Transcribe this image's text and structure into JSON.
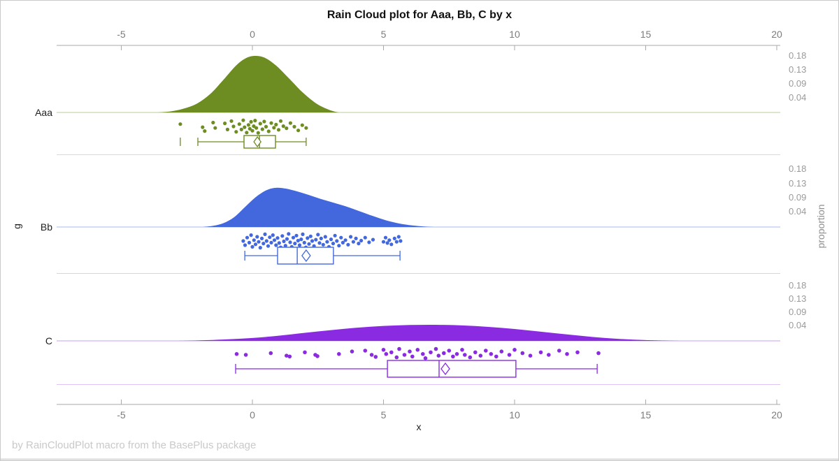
{
  "title": "Rain Cloud plot for Aaa, Bb, C by x",
  "footer": "by RainCloudPlot macro from the BasePlus package",
  "axes": {
    "x_label": "x",
    "y_label": "g",
    "y2_label": "proportion"
  },
  "chart_data": {
    "type": "raincloud (half-violin density + jittered points + box plot)",
    "title": "Rain Cloud plot for Aaa, Bb, C by x",
    "xlabel": "x",
    "ylabel": "g",
    "y2label": "proportion",
    "x_ticks": [
      -5,
      0,
      5,
      10,
      15,
      20
    ],
    "x_range": [
      -7.5,
      20.2
    ],
    "categories": [
      "Aaa",
      "Bb",
      "C"
    ],
    "proportion_ticks": [
      "0.18",
      "0.13",
      "0.09",
      "0.04"
    ],
    "grid": false,
    "legend": "none",
    "groups": [
      {
        "name": "Aaa",
        "color": "#6d8c21",
        "density": [
          [
            -3.6,
            0
          ],
          [
            -3.1,
            0.02
          ],
          [
            -2.6,
            0.07
          ],
          [
            -2.1,
            0.16
          ],
          [
            -1.6,
            0.33
          ],
          [
            -1.1,
            0.58
          ],
          [
            -0.6,
            0.84
          ],
          [
            -0.2,
            0.97
          ],
          [
            0.15,
            1.0
          ],
          [
            0.5,
            0.96
          ],
          [
            0.9,
            0.83
          ],
          [
            1.4,
            0.6
          ],
          [
            1.9,
            0.36
          ],
          [
            2.4,
            0.17
          ],
          [
            2.8,
            0.07
          ],
          [
            3.1,
            0.02
          ],
          [
            3.3,
            0
          ]
        ],
        "box": {
          "whisker_low": -2.08,
          "q1": -0.32,
          "median": 0.27,
          "q3": 0.88,
          "whisker_high": 2.05,
          "mean": 0.19,
          "outliers": [
            -2.75
          ]
        },
        "points": [
          [
            -2.75,
            0.35
          ],
          [
            -1.9,
            0.55
          ],
          [
            -1.82,
            0.8
          ],
          [
            -1.5,
            0.25
          ],
          [
            -1.42,
            0.6
          ],
          [
            -1.05,
            0.3
          ],
          [
            -0.95,
            0.7
          ],
          [
            -0.8,
            0.15
          ],
          [
            -0.72,
            0.5
          ],
          [
            -0.62,
            0.85
          ],
          [
            -0.5,
            0.35
          ],
          [
            -0.42,
            0.7
          ],
          [
            -0.35,
            0.1
          ],
          [
            -0.3,
            0.55
          ],
          [
            -0.22,
            0.9
          ],
          [
            -0.15,
            0.4
          ],
          [
            -0.1,
            0.65
          ],
          [
            -0.05,
            0.2
          ],
          [
            0.0,
            0.78
          ],
          [
            0.05,
            0.48
          ],
          [
            0.1,
            0.12
          ],
          [
            0.15,
            0.6
          ],
          [
            0.22,
            0.92
          ],
          [
            0.3,
            0.32
          ],
          [
            0.38,
            0.68
          ],
          [
            0.45,
            0.18
          ],
          [
            0.52,
            0.52
          ],
          [
            0.62,
            0.82
          ],
          [
            0.72,
            0.28
          ],
          [
            0.82,
            0.58
          ],
          [
            0.9,
            0.38
          ],
          [
            1.0,
            0.72
          ],
          [
            1.08,
            0.15
          ],
          [
            1.18,
            0.48
          ],
          [
            1.3,
            0.62
          ],
          [
            1.45,
            0.28
          ],
          [
            1.6,
            0.52
          ],
          [
            1.75,
            0.76
          ],
          [
            1.9,
            0.42
          ],
          [
            2.05,
            0.6
          ]
        ]
      },
      {
        "name": "Bb",
        "color": "#4368de",
        "density": [
          [
            -1.9,
            0
          ],
          [
            -1.5,
            0.03
          ],
          [
            -1.1,
            0.1
          ],
          [
            -0.7,
            0.25
          ],
          [
            -0.3,
            0.5
          ],
          [
            0.1,
            0.75
          ],
          [
            0.5,
            0.93
          ],
          [
            0.85,
            1.0
          ],
          [
            1.2,
            0.99
          ],
          [
            1.6,
            0.93
          ],
          [
            2.1,
            0.83
          ],
          [
            2.6,
            0.72
          ],
          [
            3.1,
            0.62
          ],
          [
            3.6,
            0.52
          ],
          [
            4.1,
            0.4
          ],
          [
            4.6,
            0.28
          ],
          [
            5.1,
            0.17
          ],
          [
            5.6,
            0.09
          ],
          [
            6.1,
            0.04
          ],
          [
            6.6,
            0.01
          ],
          [
            6.95,
            0
          ]
        ],
        "box": {
          "whisker_low": -0.29,
          "q1": 0.96,
          "median": 1.71,
          "q3": 3.09,
          "whisker_high": 5.63,
          "mean": 2.05,
          "outliers": []
        },
        "points": [
          [
            -0.35,
            0.5
          ],
          [
            -0.28,
            0.75
          ],
          [
            -0.2,
            0.3
          ],
          [
            -0.12,
            0.6
          ],
          [
            -0.05,
            0.15
          ],
          [
            0.0,
            0.85
          ],
          [
            0.06,
            0.45
          ],
          [
            0.12,
            0.7
          ],
          [
            0.18,
            0.25
          ],
          [
            0.24,
            0.55
          ],
          [
            0.3,
            0.9
          ],
          [
            0.36,
            0.35
          ],
          [
            0.42,
            0.65
          ],
          [
            0.48,
            0.1
          ],
          [
            0.54,
            0.5
          ],
          [
            0.6,
            0.8
          ],
          [
            0.66,
            0.28
          ],
          [
            0.72,
            0.6
          ],
          [
            0.78,
            0.15
          ],
          [
            0.84,
            0.45
          ],
          [
            0.9,
            0.75
          ],
          [
            0.96,
            0.32
          ],
          [
            1.02,
            0.62
          ],
          [
            1.08,
            0.88
          ],
          [
            1.14,
            0.2
          ],
          [
            1.2,
            0.52
          ],
          [
            1.26,
            0.78
          ],
          [
            1.32,
            0.38
          ],
          [
            1.38,
            0.08
          ],
          [
            1.44,
            0.58
          ],
          [
            1.5,
            0.85
          ],
          [
            1.56,
            0.3
          ],
          [
            1.62,
            0.65
          ],
          [
            1.68,
            0.18
          ],
          [
            1.74,
            0.48
          ],
          [
            1.8,
            0.75
          ],
          [
            1.86,
            0.4
          ],
          [
            1.92,
            0.1
          ],
          [
            1.98,
            0.6
          ],
          [
            2.04,
            0.88
          ],
          [
            2.1,
            0.33
          ],
          [
            2.16,
            0.68
          ],
          [
            2.22,
            0.22
          ],
          [
            2.28,
            0.5
          ],
          [
            2.35,
            0.8
          ],
          [
            2.42,
            0.42
          ],
          [
            2.5,
            0.12
          ],
          [
            2.56,
            0.62
          ],
          [
            2.62,
            0.35
          ],
          [
            2.7,
            0.72
          ],
          [
            2.78,
            0.25
          ],
          [
            2.85,
            0.55
          ],
          [
            2.92,
            0.85
          ],
          [
            3.0,
            0.4
          ],
          [
            3.08,
            0.65
          ],
          [
            3.15,
            0.18
          ],
          [
            3.22,
            0.5
          ],
          [
            3.3,
            0.78
          ],
          [
            3.38,
            0.3
          ],
          [
            3.45,
            0.6
          ],
          [
            3.55,
            0.45
          ],
          [
            3.65,
            0.72
          ],
          [
            3.75,
            0.25
          ],
          [
            3.85,
            0.55
          ],
          [
            3.95,
            0.35
          ],
          [
            4.05,
            0.65
          ],
          [
            4.15,
            0.48
          ],
          [
            4.3,
            0.3
          ],
          [
            4.45,
            0.58
          ],
          [
            4.6,
            0.42
          ],
          [
            5.0,
            0.55
          ],
          [
            5.08,
            0.3
          ],
          [
            5.15,
            0.62
          ],
          [
            5.22,
            0.45
          ],
          [
            5.3,
            0.7
          ],
          [
            5.42,
            0.35
          ],
          [
            5.5,
            0.55
          ],
          [
            5.58,
            0.25
          ],
          [
            5.65,
            0.5
          ]
        ]
      },
      {
        "name": "C",
        "color": "#8a2be2",
        "density": [
          [
            -2.8,
            0
          ],
          [
            -2.0,
            0.03
          ],
          [
            -1.0,
            0.09
          ],
          [
            0.0,
            0.18
          ],
          [
            1.0,
            0.32
          ],
          [
            2.0,
            0.5
          ],
          [
            3.0,
            0.67
          ],
          [
            4.0,
            0.82
          ],
          [
            5.0,
            0.93
          ],
          [
            6.0,
            0.99
          ],
          [
            7.0,
            1.0
          ],
          [
            8.0,
            0.96
          ],
          [
            9.0,
            0.87
          ],
          [
            10.0,
            0.74
          ],
          [
            11.0,
            0.57
          ],
          [
            12.0,
            0.4
          ],
          [
            13.0,
            0.24
          ],
          [
            14.0,
            0.12
          ],
          [
            15.0,
            0.05
          ],
          [
            16.0,
            0.01
          ],
          [
            16.3,
            0
          ]
        ],
        "box": {
          "whisker_low": -0.64,
          "q1": 5.15,
          "median": 7.12,
          "q3": 10.05,
          "whisker_high": 13.15,
          "mean": 7.36,
          "outliers": []
        },
        "points": [
          [
            -0.6,
            0.45
          ],
          [
            -0.25,
            0.5
          ],
          [
            0.7,
            0.4
          ],
          [
            1.3,
            0.55
          ],
          [
            1.42,
            0.6
          ],
          [
            2.0,
            0.35
          ],
          [
            2.4,
            0.5
          ],
          [
            2.48,
            0.58
          ],
          [
            3.3,
            0.45
          ],
          [
            3.8,
            0.3
          ],
          [
            4.3,
            0.25
          ],
          [
            4.55,
            0.5
          ],
          [
            4.7,
            0.62
          ],
          [
            5.0,
            0.2
          ],
          [
            5.1,
            0.45
          ],
          [
            5.3,
            0.35
          ],
          [
            5.5,
            0.65
          ],
          [
            5.6,
            0.15
          ],
          [
            5.8,
            0.5
          ],
          [
            6.0,
            0.3
          ],
          [
            6.1,
            0.6
          ],
          [
            6.3,
            0.2
          ],
          [
            6.5,
            0.45
          ],
          [
            6.6,
            0.7
          ],
          [
            6.8,
            0.35
          ],
          [
            7.0,
            0.15
          ],
          [
            7.1,
            0.55
          ],
          [
            7.3,
            0.4
          ],
          [
            7.5,
            0.25
          ],
          [
            7.65,
            0.6
          ],
          [
            7.8,
            0.45
          ],
          [
            8.0,
            0.2
          ],
          [
            8.1,
            0.5
          ],
          [
            8.3,
            0.65
          ],
          [
            8.5,
            0.35
          ],
          [
            8.7,
            0.55
          ],
          [
            8.9,
            0.25
          ],
          [
            9.1,
            0.45
          ],
          [
            9.3,
            0.6
          ],
          [
            9.5,
            0.3
          ],
          [
            9.8,
            0.5
          ],
          [
            10.0,
            0.2
          ],
          [
            10.3,
            0.4
          ],
          [
            10.6,
            0.55
          ],
          [
            11.0,
            0.35
          ],
          [
            11.3,
            0.5
          ],
          [
            11.7,
            0.25
          ],
          [
            12.0,
            0.45
          ],
          [
            12.4,
            0.35
          ],
          [
            13.2,
            0.4
          ]
        ]
      }
    ]
  }
}
